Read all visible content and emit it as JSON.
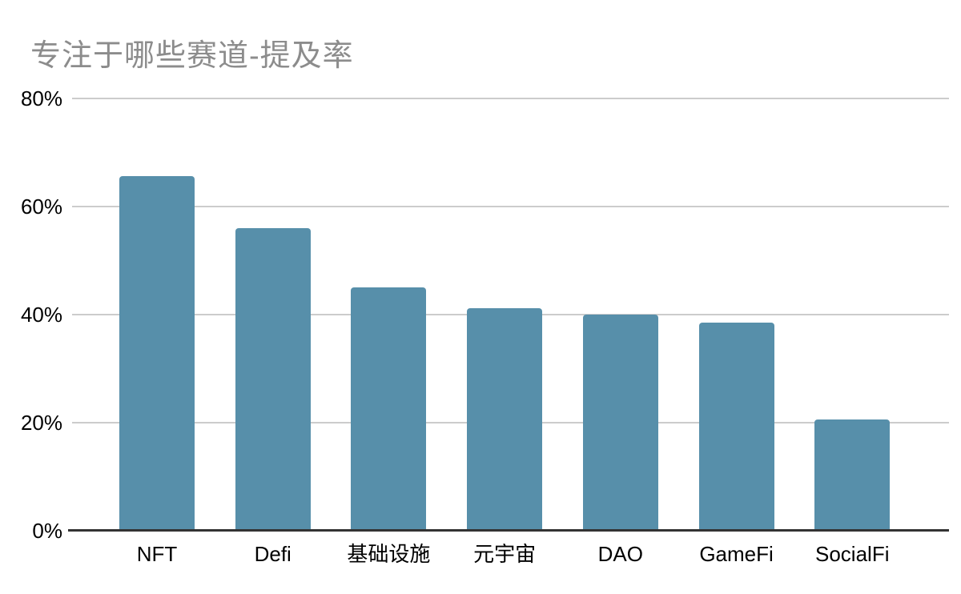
{
  "title": "专注于哪些赛道-提及率",
  "colors": {
    "bar": "#578faa",
    "title_text": "#8c8c8c",
    "gridline": "#cccccc",
    "axis_line": "#333333",
    "tick_text": "#000000",
    "background": "#ffffff"
  },
  "chart_data": {
    "type": "bar",
    "title": "专注于哪些赛道-提及率",
    "categories": [
      "NFT",
      "Defi",
      "基础设施",
      "元宇宙",
      "DAO",
      "GameFi",
      "SocialFi"
    ],
    "values": [
      65.6,
      56,
      45,
      41.2,
      40,
      38.5,
      20.6
    ],
    "series_name": "提及率",
    "xlabel": "",
    "ylabel": "",
    "ylim": [
      0,
      80
    ],
    "yticks": [
      0,
      20,
      40,
      60,
      80
    ],
    "ytick_labels": [
      "0%",
      "20%",
      "40%",
      "60%",
      "80%"
    ],
    "grid": true,
    "legend": false,
    "bar_color": "#578faa"
  }
}
